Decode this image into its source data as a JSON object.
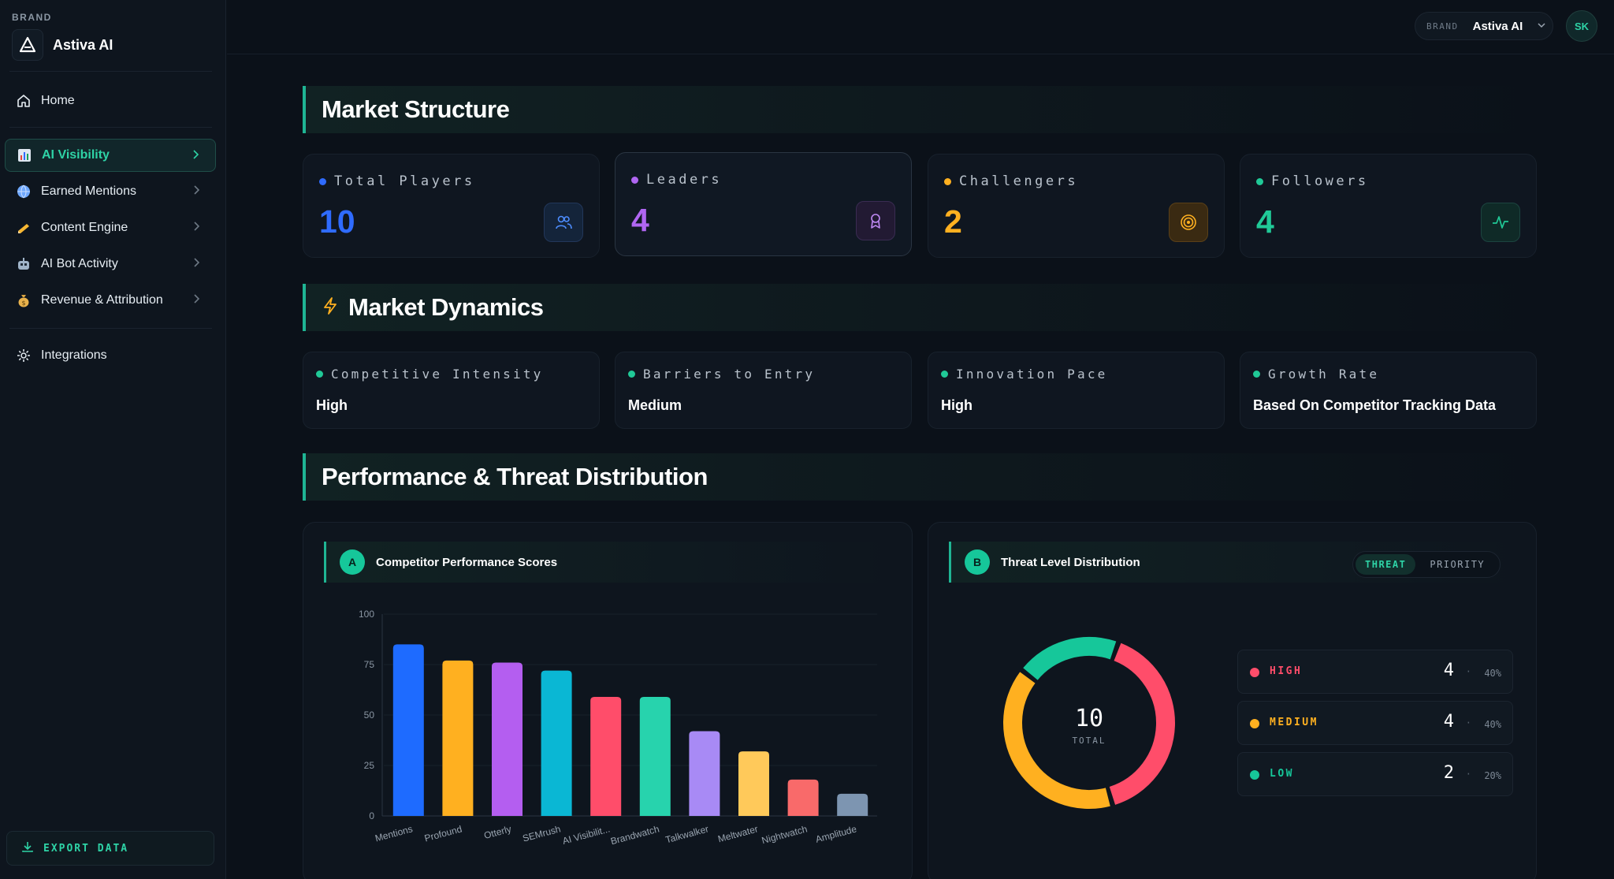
{
  "sidebar": {
    "brand_caption": "BRAND",
    "brand_name": "Astiva AI",
    "items": [
      {
        "label": "Home"
      },
      {
        "label": "AI Visibility"
      },
      {
        "label": "Earned Mentions"
      },
      {
        "label": "Content Engine"
      },
      {
        "label": "AI Bot Activity"
      },
      {
        "label": "Revenue & Attribution"
      },
      {
        "label": "Integrations"
      }
    ],
    "export_label": "EXPORT DATA"
  },
  "topbar": {
    "brand_caption": "BRAND",
    "brand_value": "Astiva AI",
    "avatar_initials": "SK"
  },
  "market_structure": {
    "title": "Market Structure",
    "cards": [
      {
        "label": "Total Players",
        "value": "10",
        "color": "#2f6bff",
        "icon": "users-icon"
      },
      {
        "label": "Leaders",
        "value": "4",
        "color": "#b066f2",
        "icon": "award-icon"
      },
      {
        "label": "Challengers",
        "value": "2",
        "color": "#ffb020",
        "icon": "target-icon"
      },
      {
        "label": "Followers",
        "value": "4",
        "color": "#20c997",
        "icon": "activity-icon"
      }
    ]
  },
  "market_dynamics": {
    "title": "Market Dynamics",
    "cards": [
      {
        "label": "Competitive Intensity",
        "value": "High"
      },
      {
        "label": "Barriers to Entry",
        "value": "Medium"
      },
      {
        "label": "Innovation Pace",
        "value": "High"
      },
      {
        "label": "Growth Rate",
        "value": "Based On Competitor Tracking Data"
      }
    ]
  },
  "performance": {
    "title": "Performance & Threat Distribution",
    "panel_a": {
      "badge": "A",
      "title": "Competitor Performance Scores"
    },
    "panel_b": {
      "badge": "B",
      "title": "Threat Level Distribution",
      "toggle": [
        "THREAT",
        "PRIORITY"
      ],
      "total_value": "10",
      "total_label": "TOTAL",
      "legend": [
        {
          "name": "HIGH",
          "value": "4",
          "pct": "40%",
          "color": "#ff4d6a"
        },
        {
          "name": "MEDIUM",
          "value": "4",
          "pct": "40%",
          "color": "#ffb020"
        },
        {
          "name": "LOW",
          "value": "2",
          "pct": "20%",
          "color": "#16c79a"
        }
      ]
    }
  },
  "chart_data": [
    {
      "type": "bar",
      "title": "Competitor Performance Scores",
      "categories": [
        "Mentions",
        "Profound",
        "Otterly",
        "SEMrush",
        "AI Visibilit...",
        "Brandwatch",
        "Talkwalker",
        "Meltwater",
        "Nightwatch",
        "Amplitude"
      ],
      "values": [
        85,
        77,
        76,
        72,
        59,
        59,
        42,
        32,
        18,
        11
      ],
      "colors": [
        "#1e6bff",
        "#ffb020",
        "#b45ef0",
        "#0ab7d4",
        "#ff4d6a",
        "#27d3ad",
        "#a88af5",
        "#ffc95a",
        "#f96a6a",
        "#7d95b1"
      ],
      "ylim": [
        0,
        100
      ],
      "yticks": [
        0,
        25,
        50,
        75,
        100
      ],
      "grid": true
    },
    {
      "type": "pie",
      "title": "Threat Level Distribution",
      "categories": [
        "HIGH",
        "MEDIUM",
        "LOW"
      ],
      "values": [
        4,
        4,
        2
      ],
      "colors": [
        "#ff4d6a",
        "#ffb020",
        "#16c79a"
      ]
    }
  ]
}
